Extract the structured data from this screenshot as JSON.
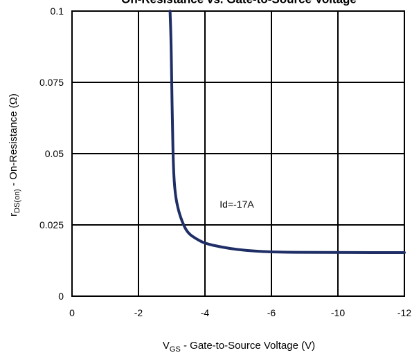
{
  "chart_data": {
    "type": "line",
    "title": "On-Resistance vs. Gate-to-Source Voltage",
    "xlabel_main": "V",
    "xlabel_sub": "GS",
    "xlabel_rest": " - Gate-to-Source Voltage (V)",
    "ylabel_main": "r",
    "ylabel_sub": "DS(on)",
    "ylabel_rest": " - On-Resistance (Ω)",
    "x_ticks": [
      "0",
      "-2",
      "-4",
      "-6",
      "-10",
      "-12"
    ],
    "y_ticks": [
      "0",
      "0.025",
      "0.05",
      "0.075",
      "0.1"
    ],
    "ylim": [
      0,
      0.1
    ],
    "grid": true,
    "annotation": "Id=-17A",
    "series": [
      {
        "color": "#1f2f66",
        "points": [
          [
            -2.95,
            0.1
          ],
          [
            -2.98,
            0.09
          ],
          [
            -3.0,
            0.075
          ],
          [
            -3.02,
            0.06
          ],
          [
            -3.05,
            0.045
          ],
          [
            -3.1,
            0.036
          ],
          [
            -3.2,
            0.03
          ],
          [
            -3.35,
            0.025
          ],
          [
            -3.5,
            0.022
          ],
          [
            -3.75,
            0.02
          ],
          [
            -4.0,
            0.0185
          ],
          [
            -4.5,
            0.0172
          ],
          [
            -5.0,
            0.0163
          ],
          [
            -5.5,
            0.0158
          ],
          [
            -6.0,
            0.0155
          ],
          [
            -7.0,
            0.0154
          ],
          [
            -8.0,
            0.0154
          ],
          [
            -10.0,
            0.0153
          ],
          [
            -12.0,
            0.0153
          ]
        ]
      }
    ]
  }
}
